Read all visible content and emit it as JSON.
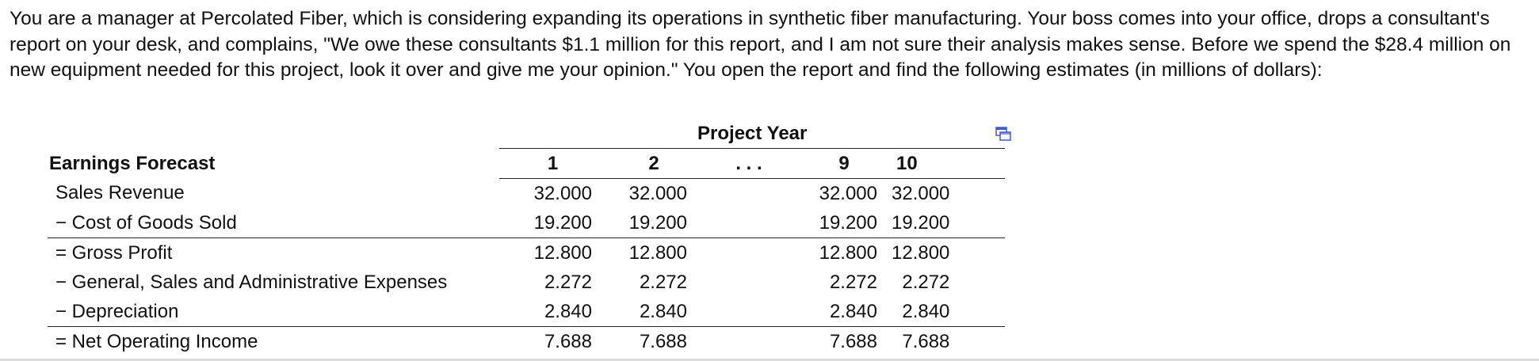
{
  "intro_text": "You are a manager at Percolated Fiber, which is considering expanding its operations in synthetic fiber manufacturing. Your boss comes into your office, drops a consultant's report on your desk, and complains, \"We owe these consultants $1.1 million for this report, and I am not sure their analysis makes sense. Before we spend the $28.4 million on new equipment needed for this project, look it over and give me your opinion.\" You open the report and find the following estimates (in millions of dollars):",
  "table": {
    "group_header": "Project Year",
    "row_header": "Earnings Forecast",
    "columns": [
      "1",
      "2",
      ". . .",
      "9",
      "10"
    ],
    "rows": [
      {
        "label": "Sales Revenue",
        "values": [
          "32.000",
          "32.000",
          "",
          "32.000",
          "32.000"
        ]
      },
      {
        "label": "− Cost of Goods Sold",
        "values": [
          "19.200",
          "19.200",
          "",
          "19.200",
          "19.200"
        ]
      },
      {
        "label": "= Gross Profit",
        "values": [
          "12.800",
          "12.800",
          "",
          "12.800",
          "12.800"
        ]
      },
      {
        "label": "− General, Sales and Administrative Expenses",
        "values": [
          "2.272",
          "2.272",
          "",
          "2.272",
          "2.272"
        ]
      },
      {
        "label": "− Depreciation",
        "values": [
          "2.840",
          "2.840",
          "",
          "2.840",
          "2.840"
        ]
      },
      {
        "label": "= Net Operating Income",
        "values": [
          "7.688",
          "7.688",
          "",
          "7.688",
          "7.688"
        ]
      }
    ]
  },
  "icons": {
    "copy": "copy-table-icon"
  },
  "colors": {
    "text": "#111111",
    "icon_accent": "#3b5bd6"
  }
}
